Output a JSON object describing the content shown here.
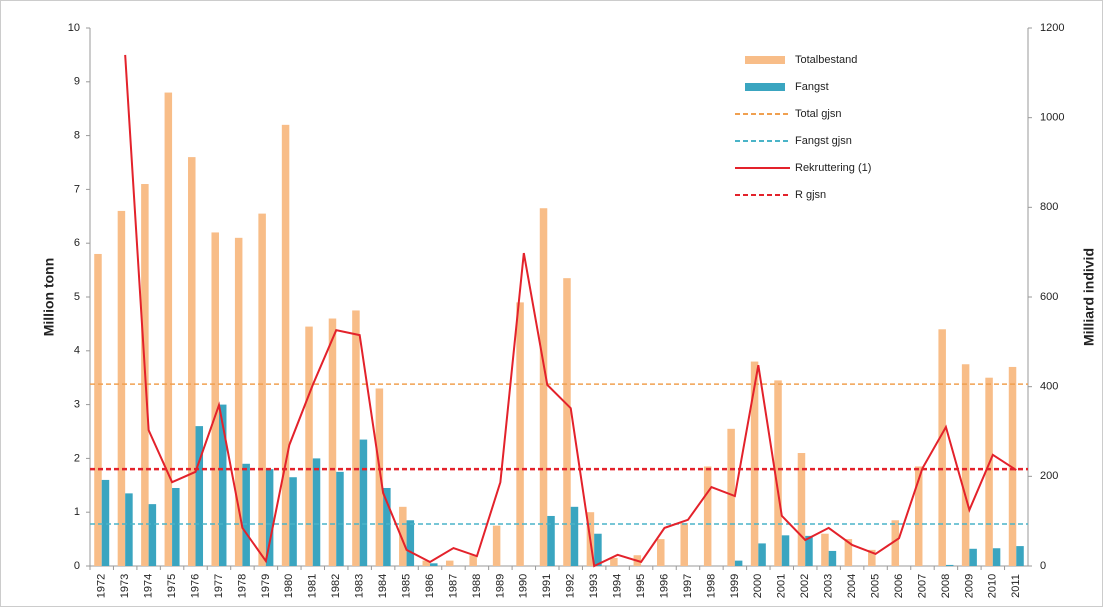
{
  "chart_data": {
    "type": "bar-line",
    "ylabel": "Million tonn",
    "y2label": "Milliard individ",
    "categories": [
      "1972",
      "1973",
      "1974",
      "1975",
      "1976",
      "1977",
      "1978",
      "1979",
      "1980",
      "1981",
      "1982",
      "1983",
      "1984",
      "1985",
      "1986",
      "1987",
      "1988",
      "1989",
      "1990",
      "1991",
      "1992",
      "1993",
      "1994",
      "1995",
      "1996",
      "1997",
      "1998",
      "1999",
      "2000",
      "2001",
      "2002",
      "2003",
      "2004",
      "2005",
      "2006",
      "2007",
      "2008",
      "2009",
      "2010",
      "2011"
    ],
    "ylim": [
      0,
      10
    ],
    "yticks": [
      0,
      1,
      2,
      3,
      4,
      5,
      6,
      7,
      8,
      9,
      10
    ],
    "y2lim": [
      0,
      1200
    ],
    "y2ticks": [
      0,
      200,
      400,
      600,
      800,
      1000,
      1200
    ],
    "series": [
      {
        "name": "Totalbestand",
        "kind": "bar",
        "color": "#f8bd88",
        "values": [
          5.8,
          6.6,
          7.1,
          8.8,
          7.6,
          6.2,
          6.1,
          6.55,
          8.2,
          4.45,
          4.6,
          4.75,
          3.3,
          1.1,
          0.1,
          0.1,
          0.2,
          0.75,
          4.9,
          6.65,
          5.35,
          1.0,
          0.15,
          0.2,
          0.5,
          0.8,
          1.85,
          2.55,
          3.8,
          3.45,
          2.1,
          0.6,
          0.5,
          0.3,
          0.85,
          1.85,
          4.4,
          3.75,
          3.5,
          3.7
        ]
      },
      {
        "name": "Fangst",
        "kind": "bar",
        "color": "#3aa5c0",
        "values": [
          1.6,
          1.35,
          1.15,
          1.45,
          2.6,
          3.0,
          1.9,
          1.8,
          1.65,
          2.0,
          1.75,
          2.35,
          1.45,
          0.85,
          0.05,
          0,
          0,
          0,
          0,
          0.93,
          1.1,
          0.6,
          0,
          0,
          0,
          0,
          0,
          0.1,
          0.42,
          0.57,
          0.56,
          0.28,
          0,
          0,
          0,
          0,
          0.02,
          0.32,
          0.33,
          0.37
        ]
      },
      {
        "name": "Total gjsn",
        "kind": "hline",
        "color": "#f0a050",
        "value": 3.38
      },
      {
        "name": "Fangst gjsn",
        "kind": "hline",
        "color": "#4ab4c8",
        "value": 0.78
      },
      {
        "name": "Rekruttering  (1)",
        "kind": "line",
        "axis": "y2",
        "color": "#e3222b",
        "values": [
          null,
          1140,
          303,
          187,
          210,
          359,
          85,
          11,
          270,
          404,
          526,
          515,
          163,
          36,
          9,
          40,
          22,
          187,
          698,
          404,
          352,
          0,
          25,
          9,
          85,
          103,
          176,
          156,
          448,
          112,
          58,
          85,
          47,
          27,
          62,
          218,
          310,
          125,
          248,
          214
        ]
      },
      {
        "name": "R gjsn",
        "kind": "hline",
        "axis": "y2",
        "color": "#e3222b",
        "value": 216
      }
    ]
  }
}
